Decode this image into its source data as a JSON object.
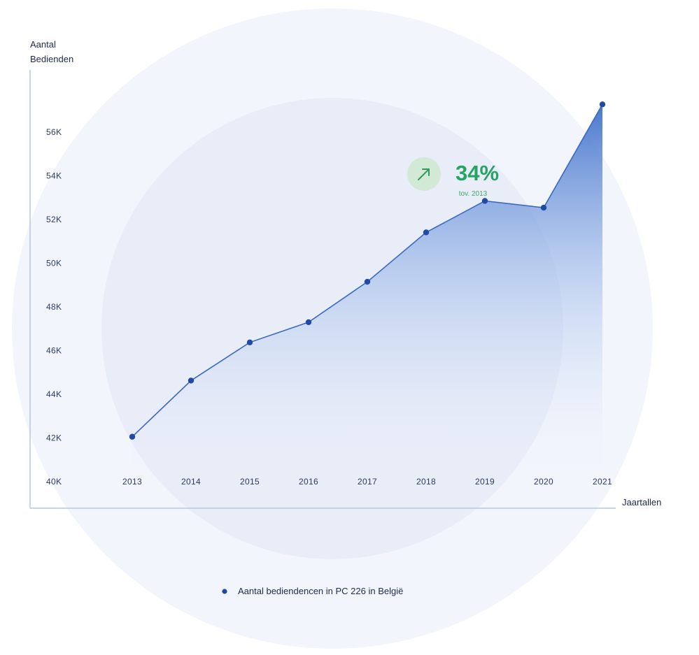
{
  "chart_data": {
    "type": "area",
    "ylabel_lines": [
      "Aantal",
      "Bedienden"
    ],
    "xlabel": "Jaartallen",
    "x": [
      "2013",
      "2014",
      "2015",
      "2016",
      "2017",
      "2018",
      "2019",
      "2020",
      "2021"
    ],
    "series": [
      {
        "name": "Aantal bediendencen in PC 226 in België",
        "values": [
          42000,
          44500,
          46200,
          47100,
          48900,
          51100,
          52500,
          52200,
          56800
        ]
      }
    ],
    "ylim": [
      40000,
      58000
    ],
    "yticks": [
      "40K",
      "42K",
      "44K",
      "46K",
      "48K",
      "50K",
      "52K",
      "54K",
      "56K"
    ],
    "grid": false,
    "legend_position": "bottom-center",
    "annotation": {
      "value": "34%",
      "caption": "tov. 2013",
      "icon": "arrow-up-right-icon"
    },
    "colors": {
      "line": "#3a68c4",
      "marker": "#1f4aa8",
      "area_top": "#3a6cc8",
      "annotation": "#27a463"
    }
  }
}
